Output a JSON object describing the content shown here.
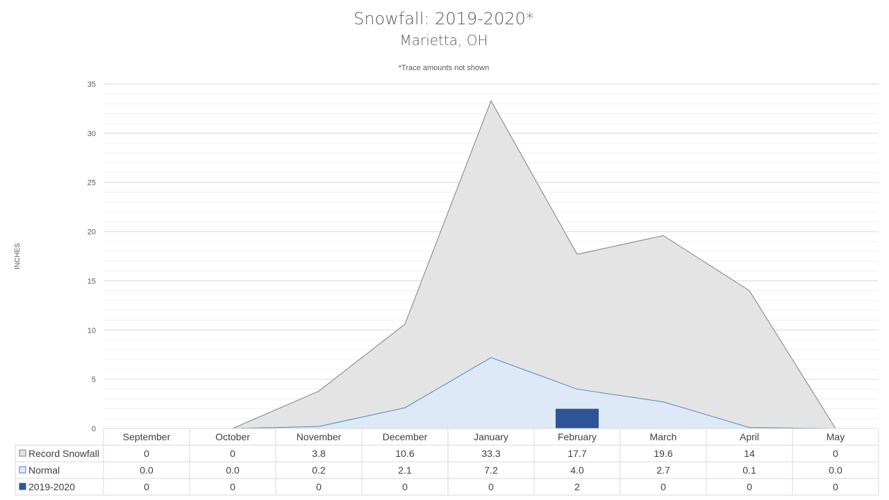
{
  "chart_data": {
    "type": "area",
    "title": "Snowfall: 2019-2020*",
    "subtitle": "Marietta, OH",
    "note": "*Trace amounts not shown",
    "ylabel": "INCHES",
    "ylim": [
      0,
      35
    ],
    "yticks": [
      "0",
      "5",
      "10",
      "15",
      "20",
      "25",
      "30",
      "35"
    ],
    "grid": true,
    "legend": "data-table",
    "categories": [
      "September",
      "October",
      "November",
      "December",
      "January",
      "February",
      "March",
      "April",
      "May"
    ],
    "series": [
      {
        "name": "Record Snowfall",
        "kind": "area",
        "color": "#e4e4e4",
        "stroke": "#808080",
        "values": [
          0,
          0,
          3.8,
          10.6,
          33.3,
          17.7,
          19.6,
          14,
          0
        ],
        "labels": [
          "0",
          "0",
          "3.8",
          "10.6",
          "33.3",
          "17.7",
          "19.6",
          "14",
          "0"
        ]
      },
      {
        "name": "Normal",
        "kind": "area",
        "color": "#dde9f6",
        "stroke": "#4a86c5",
        "values": [
          0.0,
          0.0,
          0.2,
          2.1,
          7.2,
          4.0,
          2.7,
          0.1,
          0.0
        ],
        "labels": [
          "0.0",
          "0.0",
          "0.2",
          "2.1",
          "7.2",
          "4.0",
          "2.7",
          "0.1",
          "0.0"
        ]
      },
      {
        "name": "2019-2020",
        "kind": "bar",
        "color": "#2f5496",
        "values": [
          0,
          0,
          0,
          0,
          0,
          2,
          0,
          0,
          0
        ],
        "labels": [
          "0",
          "0",
          "0",
          "0",
          "0",
          "2",
          "0",
          "0",
          "0"
        ]
      }
    ]
  }
}
